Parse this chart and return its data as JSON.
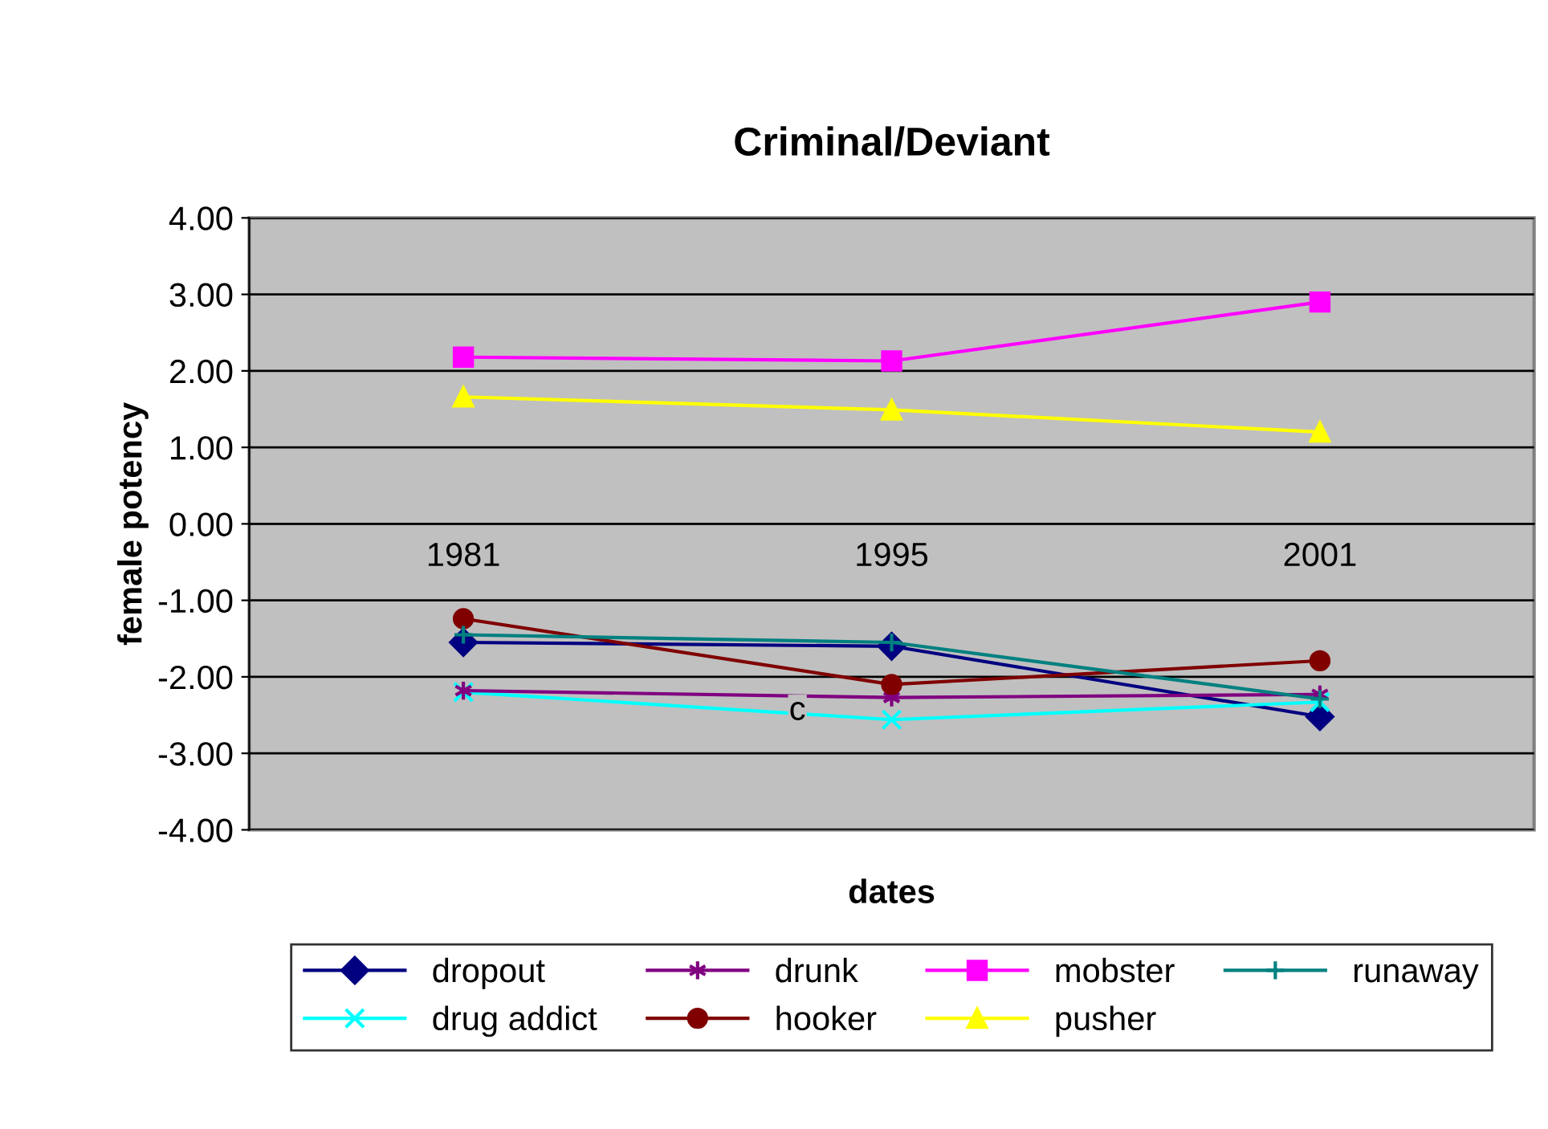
{
  "chart_data": {
    "type": "line",
    "title": "Criminal/Deviant",
    "xlabel": "dates",
    "ylabel": "female potency",
    "categories": [
      "1981",
      "1995",
      "2001"
    ],
    "series": [
      {
        "name": "dropout",
        "color": "#000080",
        "marker": "diamond",
        "values": [
          -1.55,
          -1.6,
          -2.52
        ]
      },
      {
        "name": "drug addict",
        "color": "#00ffff",
        "marker": "cross",
        "values": [
          -2.2,
          -2.56,
          -2.33
        ]
      },
      {
        "name": "drunk",
        "color": "#800080",
        "marker": "cross",
        "values": [
          -2.18,
          -2.27,
          -2.23
        ]
      },
      {
        "name": "hooker",
        "color": "#800000",
        "marker": "circle",
        "values": [
          -1.24,
          -2.1,
          -1.79
        ]
      },
      {
        "name": "mobster",
        "color": "#ff00ff",
        "marker": "square",
        "values": [
          2.18,
          2.13,
          2.9
        ]
      },
      {
        "name": "pusher",
        "color": "#ffff00",
        "marker": "triangle",
        "values": [
          1.66,
          1.49,
          1.2
        ]
      },
      {
        "name": "runaway",
        "color": "#008080",
        "marker": "cross",
        "values": [
          -1.45,
          -1.55,
          -2.29
        ]
      }
    ],
    "annotations": [
      {
        "text": "c",
        "x": "1995",
        "y": -2.45
      }
    ],
    "ylim": [
      -4,
      4
    ],
    "yticks": [
      {
        "value": -4,
        "label": "-4.00"
      },
      {
        "value": -3,
        "label": "-3.00"
      },
      {
        "value": -2,
        "label": "-2.00"
      },
      {
        "value": -1,
        "label": "-1.00"
      },
      {
        "value": 0,
        "label": "0.00"
      },
      {
        "value": 1,
        "label": "1.00"
      },
      {
        "value": 2,
        "label": "2.00"
      },
      {
        "value": 3,
        "label": "3.00"
      },
      {
        "value": 4,
        "label": "4.00"
      }
    ],
    "grid": "y",
    "legend": "bottom",
    "line_style": "solid"
  }
}
